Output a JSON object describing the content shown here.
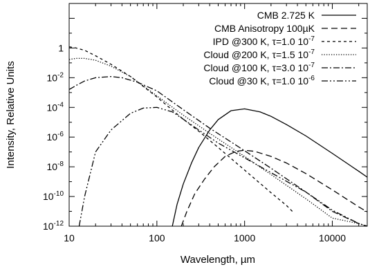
{
  "chart_data": {
    "type": "line",
    "xlabel": "Wavelength, µm",
    "ylabel": "Intensity, Relative Units",
    "x_scale": "log",
    "y_scale": "log",
    "xlim": [
      10,
      25000
    ],
    "ylim": [
      1e-12,
      1000
    ],
    "grid": false,
    "legend_position": "top-right",
    "x_ticks": [
      {
        "value": 10,
        "label": "10"
      },
      {
        "value": 100,
        "label": "100"
      },
      {
        "value": 1000,
        "label": "1000"
      },
      {
        "value": 10000,
        "label": "10000"
      }
    ],
    "y_ticks": [
      {
        "value": 1,
        "base": "1",
        "exp": ""
      },
      {
        "value": 0.01,
        "base": "10",
        "exp": "-2"
      },
      {
        "value": 0.0001,
        "base": "10",
        "exp": "-4"
      },
      {
        "value": 1e-06,
        "base": "10",
        "exp": "-6"
      },
      {
        "value": 1e-08,
        "base": "10",
        "exp": "-8"
      },
      {
        "value": 1e-10,
        "base": "10",
        "exp": "-10"
      },
      {
        "value": 1e-12,
        "base": "10",
        "exp": "-12"
      }
    ],
    "series": [
      {
        "name": "CMB 2.725 K",
        "style": "solid",
        "x": [
          150,
          170,
          200,
          250,
          300,
          400,
          500,
          700,
          1000,
          1500,
          2000,
          3000,
          5000,
          10000,
          20000,
          25000
        ],
        "y": [
          1e-12,
          3e-11,
          7e-10,
          2e-08,
          2e-07,
          3e-06,
          1.5e-05,
          6e-05,
          8e-05,
          5e-05,
          2.5e-05,
          7e-06,
          1.2e-06,
          8e-08,
          5e-09,
          2e-09
        ]
      },
      {
        "name": "CMB Anisotropy 100µK",
        "style": "dashed",
        "x": [
          190,
          220,
          270,
          350,
          450,
          600,
          800,
          1000,
          1300,
          2000,
          3000,
          5000,
          10000,
          20000,
          25000
        ],
        "y": [
          1e-12,
          1e-11,
          1.5e-10,
          1.5e-09,
          1e-08,
          5e-08,
          1.1e-07,
          1.3e-07,
          1.1e-07,
          5e-08,
          1.8e-08,
          3.5e-09,
          2.8e-10,
          2e-11,
          9e-12
        ]
      },
      {
        "name": "IPD @300 K, τ=1.0 10",
        "exp": "-7",
        "style": "short-dash",
        "x": [
          10,
          12,
          15,
          20,
          30,
          50,
          100,
          200,
          300,
          500,
          1000,
          2000,
          3000,
          3500
        ],
        "y": [
          1.2,
          1.0,
          0.7,
          0.3,
          0.08,
          0.012,
          0.0005,
          1.6e-05,
          2.5e-06,
          2e-07,
          6e-09,
          1.8e-10,
          2.5e-11,
          1e-11
        ]
      },
      {
        "name": "Cloud @200 K, τ=1.5 10",
        "exp": "-7",
        "style": "dotted",
        "x": [
          10,
          12,
          15,
          20,
          30,
          50,
          100,
          200,
          400,
          1000,
          2000,
          5000,
          10000,
          20000,
          25000
        ],
        "y": [
          0.17,
          0.2,
          0.2,
          0.15,
          0.06,
          0.012,
          0.0006,
          3e-05,
          1.8e-06,
          5e-08,
          3e-09,
          7e-11,
          3.5e-12,
          1.5e-12,
          1e-12
        ]
      },
      {
        "name": "Cloud @100 K, τ=3.0 10",
        "exp": "-7",
        "style": "dash-dot",
        "x": [
          10,
          12,
          15,
          20,
          30,
          40,
          60,
          100,
          200,
          400,
          1000,
          2000,
          5000,
          10000,
          20000,
          25000
        ],
        "y": [
          0.0016,
          0.003,
          0.006,
          0.01,
          0.012,
          0.01,
          0.005,
          0.0013,
          7e-05,
          4e-06,
          1.2e-07,
          8e-09,
          2e-10,
          1e-11,
          1.5e-12,
          1e-12
        ]
      },
      {
        "name": "Cloud @30 K, τ=1.0 10",
        "exp": "-6",
        "style": "dash-dot-dot",
        "x": [
          13,
          15,
          20,
          30,
          50,
          70,
          100,
          150,
          200,
          300,
          500,
          1000,
          2000,
          5000,
          10000,
          20000,
          25000
        ],
        "y": [
          1e-12,
          1e-10,
          1e-07,
          3e-06,
          4e-05,
          9e-05,
          0.0001,
          5e-05,
          1.6e-05,
          3e-06,
          4e-07,
          4e-08,
          4e-09,
          2e-10,
          1.2e-11,
          1.5e-12,
          1e-12
        ]
      }
    ]
  }
}
